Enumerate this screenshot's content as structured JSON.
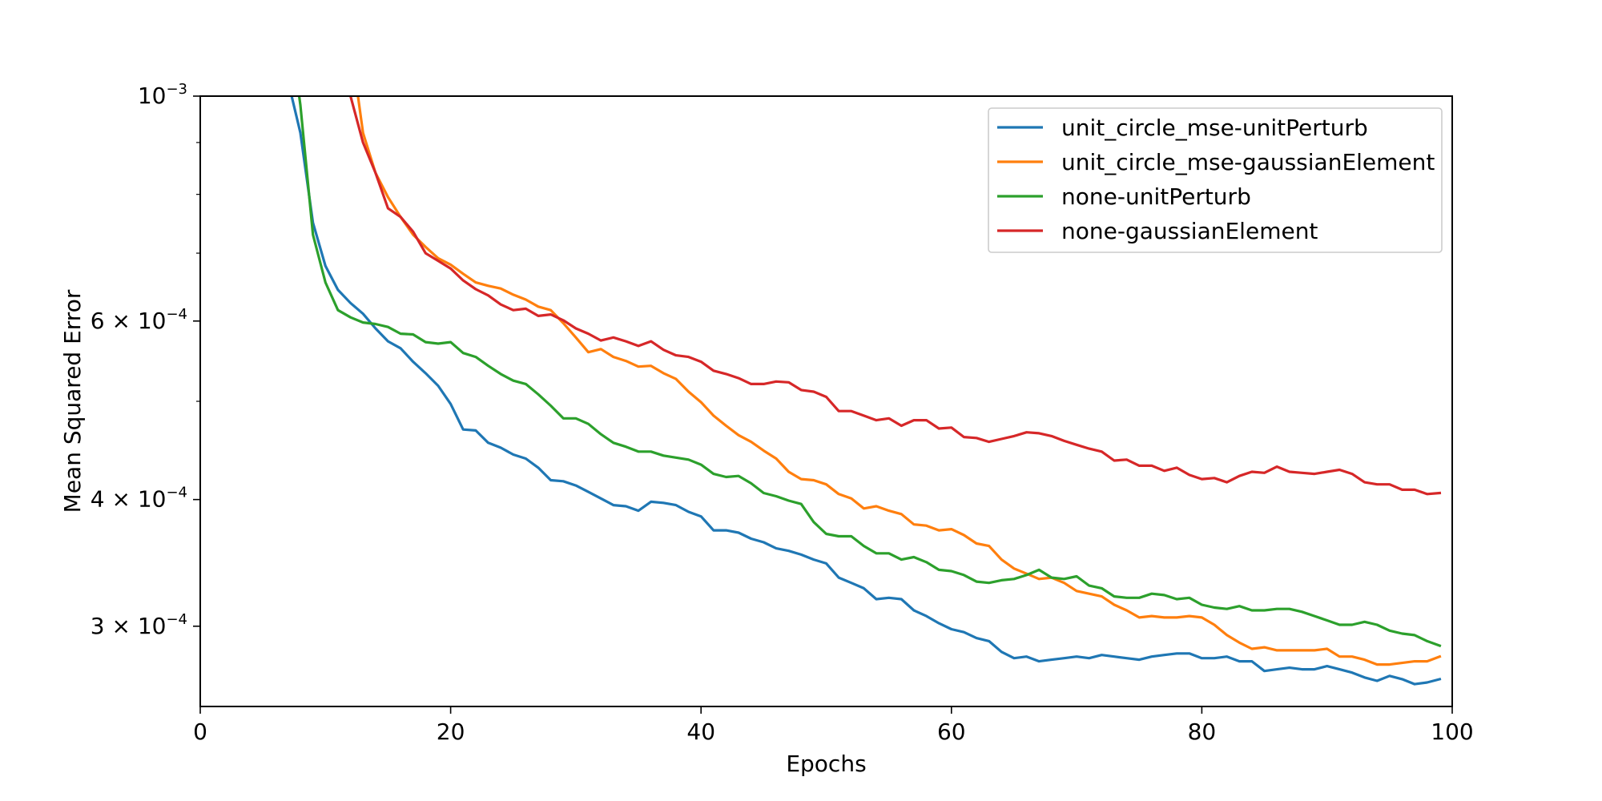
{
  "chart_data": {
    "type": "line",
    "title": "",
    "xlabel": "Epochs",
    "ylabel": "Mean Squared Error",
    "xlim": [
      0,
      100
    ],
    "ylim": [
      0.00025,
      0.001
    ],
    "yscale": "log",
    "grid": false,
    "legend_position": "top-right",
    "x_ticks": [
      {
        "value": 0,
        "label": "0"
      },
      {
        "value": 20,
        "label": "20"
      },
      {
        "value": 40,
        "label": "40"
      },
      {
        "value": 60,
        "label": "60"
      },
      {
        "value": 80,
        "label": "80"
      },
      {
        "value": 100,
        "label": "100"
      }
    ],
    "y_ticks": [
      {
        "value": 0.001,
        "mant": "",
        "base": "10",
        "exp": "−3"
      },
      {
        "value": 0.0006,
        "mant": "6 × ",
        "base": "10",
        "exp": "−4"
      },
      {
        "value": 0.0004,
        "mant": "4 × ",
        "base": "10",
        "exp": "−4"
      },
      {
        "value": 0.0003,
        "mant": "3 × ",
        "base": "10",
        "exp": "−4"
      }
    ],
    "y_minor_ticks": [
      0.0005,
      0.0007,
      0.0008,
      0.0009
    ],
    "series": [
      {
        "name": "unit_circle_mse-unitPerturb",
        "color": "#1f77b4",
        "x": [
          7.3,
          8,
          9,
          10,
          11,
          12,
          13,
          14,
          15,
          16,
          17,
          18,
          19,
          20,
          21,
          22,
          23,
          24,
          25,
          26,
          27,
          28,
          29,
          30,
          31,
          32,
          33,
          34,
          35,
          36,
          37,
          38,
          39,
          40,
          41,
          42,
          43,
          44,
          45,
          46,
          47,
          48,
          49,
          50,
          51,
          52,
          53,
          54,
          55,
          56,
          57,
          58,
          59,
          60,
          61,
          62,
          63,
          64,
          65,
          66,
          67,
          68,
          69,
          70,
          71,
          72,
          73,
          74,
          75,
          76,
          77,
          78,
          79,
          80,
          81,
          82,
          83,
          84,
          85,
          86,
          87,
          88,
          89,
          90,
          91,
          92,
          93,
          94,
          95,
          96,
          97,
          98,
          99
        ],
        "y": [
          0.001,
          0.00092,
          0.00075,
          0.00068,
          0.000644,
          0.000625,
          0.00061,
          0.00059,
          0.000573,
          0.000564,
          0.000547,
          0.000533,
          0.000518,
          0.000497,
          0.000469,
          0.000468,
          0.000455,
          0.00045,
          0.000443,
          0.000439,
          0.00043,
          0.000418,
          0.000417,
          0.000413,
          0.000407,
          0.000401,
          0.000395,
          0.000394,
          0.00039,
          0.000398,
          0.000397,
          0.000395,
          0.000389,
          0.000385,
          0.000373,
          0.000373,
          0.000371,
          0.000366,
          0.000363,
          0.000358,
          0.000356,
          0.000353,
          0.000349,
          0.000346,
          0.000335,
          0.000331,
          0.000327,
          0.000319,
          0.00032,
          0.000319,
          0.000311,
          0.000307,
          0.000302,
          0.000298,
          0.000296,
          0.000292,
          0.00029,
          0.000283,
          0.000279,
          0.00028,
          0.000277,
          0.000278,
          0.000279,
          0.00028,
          0.000279,
          0.000281,
          0.00028,
          0.000279,
          0.000278,
          0.00028,
          0.000281,
          0.000282,
          0.000282,
          0.000279,
          0.000279,
          0.00028,
          0.000277,
          0.000277,
          0.000271,
          0.000272,
          0.000273,
          0.000272,
          0.000272,
          0.000274,
          0.000272,
          0.00027,
          0.000267,
          0.000265,
          0.000268,
          0.000266,
          0.000263,
          0.000264,
          0.000266
        ]
      },
      {
        "name": "unit_circle_mse-gaussianElement",
        "color": "#ff7f0e",
        "x": [
          12.6,
          13,
          14,
          15,
          16,
          17,
          18,
          19,
          20,
          21,
          22,
          23,
          24,
          25,
          26,
          27,
          28,
          29,
          30,
          31,
          32,
          33,
          34,
          35,
          36,
          37,
          38,
          39,
          40,
          41,
          42,
          43,
          44,
          45,
          46,
          47,
          48,
          49,
          50,
          51,
          52,
          53,
          54,
          55,
          56,
          57,
          58,
          59,
          60,
          61,
          62,
          63,
          64,
          65,
          66,
          67,
          68,
          69,
          70,
          71,
          72,
          73,
          74,
          75,
          76,
          77,
          78,
          79,
          80,
          81,
          82,
          83,
          84,
          85,
          86,
          87,
          88,
          89,
          90,
          91,
          92,
          93,
          94,
          95,
          96,
          97,
          98,
          99
        ],
        "y": [
          0.001,
          0.00092,
          0.00084,
          0.000795,
          0.00076,
          0.00073,
          0.00071,
          0.000692,
          0.000682,
          0.000668,
          0.000655,
          0.00065,
          0.000646,
          0.000637,
          0.00063,
          0.00062,
          0.000615,
          0.000597,
          0.000578,
          0.000559,
          0.000563,
          0.000553,
          0.000548,
          0.000541,
          0.000542,
          0.000533,
          0.000526,
          0.000511,
          0.000499,
          0.000484,
          0.000473,
          0.000463,
          0.000456,
          0.000447,
          0.000439,
          0.000426,
          0.000419,
          0.000418,
          0.000414,
          0.000405,
          0.000401,
          0.000392,
          0.000394,
          0.00039,
          0.000387,
          0.000378,
          0.000377,
          0.000373,
          0.000374,
          0.000369,
          0.000362,
          0.00036,
          0.000349,
          0.000342,
          0.000338,
          0.000334,
          0.000335,
          0.000331,
          0.000325,
          0.000323,
          0.000321,
          0.000315,
          0.000311,
          0.000306,
          0.000307,
          0.000306,
          0.000306,
          0.000307,
          0.000306,
          0.000301,
          0.000294,
          0.000289,
          0.000285,
          0.000286,
          0.000284,
          0.000284,
          0.000284,
          0.000284,
          0.000285,
          0.00028,
          0.00028,
          0.000278,
          0.000275,
          0.000275,
          0.000276,
          0.000277,
          0.000277,
          0.00028
        ]
      },
      {
        "name": "none-unitPerturb",
        "color": "#2ca02c",
        "x": [
          7.9,
          8,
          9,
          10,
          11,
          12,
          13,
          14,
          15,
          16,
          17,
          18,
          19,
          20,
          21,
          22,
          23,
          24,
          25,
          26,
          27,
          28,
          29,
          30,
          31,
          32,
          33,
          34,
          35,
          36,
          37,
          38,
          39,
          40,
          41,
          42,
          43,
          44,
          45,
          46,
          47,
          48,
          49,
          50,
          51,
          52,
          53,
          54,
          55,
          56,
          57,
          58,
          59,
          60,
          61,
          62,
          63,
          64,
          65,
          66,
          67,
          68,
          69,
          70,
          71,
          72,
          73,
          74,
          75,
          76,
          77,
          78,
          79,
          80,
          81,
          82,
          83,
          84,
          85,
          86,
          87,
          88,
          89,
          90,
          91,
          92,
          93,
          94,
          95,
          96,
          97,
          98,
          99
        ],
        "y": [
          0.001,
          0.00098,
          0.00073,
          0.000655,
          0.000615,
          0.000605,
          0.000598,
          0.000596,
          0.000592,
          0.000583,
          0.000582,
          0.000572,
          0.00057,
          0.000572,
          0.000558,
          0.000553,
          0.000542,
          0.000532,
          0.000524,
          0.00052,
          0.000508,
          0.000495,
          0.000481,
          0.000481,
          0.000475,
          0.000464,
          0.000455,
          0.000451,
          0.000446,
          0.000446,
          0.000442,
          0.00044,
          0.000438,
          0.000433,
          0.000424,
          0.000421,
          0.000422,
          0.000415,
          0.000406,
          0.000403,
          0.000399,
          0.000396,
          0.00038,
          0.00037,
          0.000368,
          0.000368,
          0.00036,
          0.000354,
          0.000354,
          0.000349,
          0.000351,
          0.000347,
          0.000341,
          0.00034,
          0.000337,
          0.000332,
          0.000331,
          0.000333,
          0.000334,
          0.000337,
          0.000341,
          0.000335,
          0.000334,
          0.000336,
          0.000329,
          0.000327,
          0.000321,
          0.00032,
          0.00032,
          0.000323,
          0.000322,
          0.000319,
          0.00032,
          0.000315,
          0.000313,
          0.000312,
          0.000314,
          0.000311,
          0.000311,
          0.000312,
          0.000312,
          0.00031,
          0.000307,
          0.000304,
          0.000301,
          0.000301,
          0.000303,
          0.000301,
          0.000297,
          0.000295,
          0.000294,
          0.00029,
          0.000287
        ]
      },
      {
        "name": "none-gaussianElement",
        "color": "#d62728",
        "x": [
          12,
          13,
          14,
          15,
          16,
          17,
          18,
          19,
          20,
          21,
          22,
          23,
          24,
          25,
          26,
          27,
          28,
          29,
          30,
          31,
          32,
          33,
          34,
          35,
          36,
          37,
          38,
          39,
          40,
          41,
          42,
          43,
          44,
          45,
          46,
          47,
          48,
          49,
          50,
          51,
          52,
          53,
          54,
          55,
          56,
          57,
          58,
          59,
          60,
          61,
          62,
          63,
          64,
          65,
          66,
          67,
          68,
          69,
          70,
          71,
          72,
          73,
          74,
          75,
          76,
          77,
          78,
          79,
          80,
          81,
          82,
          83,
          84,
          85,
          86,
          87,
          88,
          89,
          90,
          91,
          92,
          93,
          94,
          95,
          96,
          97,
          98,
          99
        ],
        "y": [
          0.001,
          0.0009,
          0.00084,
          0.000775,
          0.00076,
          0.000735,
          0.0007,
          0.000688,
          0.000676,
          0.000658,
          0.000645,
          0.000636,
          0.000623,
          0.000615,
          0.000617,
          0.000607,
          0.000609,
          0.000601,
          0.00059,
          0.000583,
          0.000574,
          0.000578,
          0.000573,
          0.000567,
          0.000573,
          0.000562,
          0.000555,
          0.000553,
          0.000547,
          0.000536,
          0.000532,
          0.000527,
          0.00052,
          0.00052,
          0.000523,
          0.000522,
          0.000513,
          0.000511,
          0.000505,
          0.000489,
          0.000489,
          0.000484,
          0.000479,
          0.000481,
          0.000473,
          0.000479,
          0.000479,
          0.00047,
          0.000471,
          0.000461,
          0.00046,
          0.000456,
          0.000459,
          0.000462,
          0.000466,
          0.000465,
          0.000462,
          0.000457,
          0.000453,
          0.000449,
          0.000446,
          0.000437,
          0.000438,
          0.000432,
          0.000432,
          0.000427,
          0.00043,
          0.000423,
          0.000419,
          0.00042,
          0.000416,
          0.000422,
          0.000426,
          0.000425,
          0.000431,
          0.000426,
          0.000425,
          0.000424,
          0.000426,
          0.000428,
          0.000424,
          0.000416,
          0.000414,
          0.000414,
          0.000409,
          0.000409,
          0.000405,
          0.000406
        ]
      }
    ]
  }
}
